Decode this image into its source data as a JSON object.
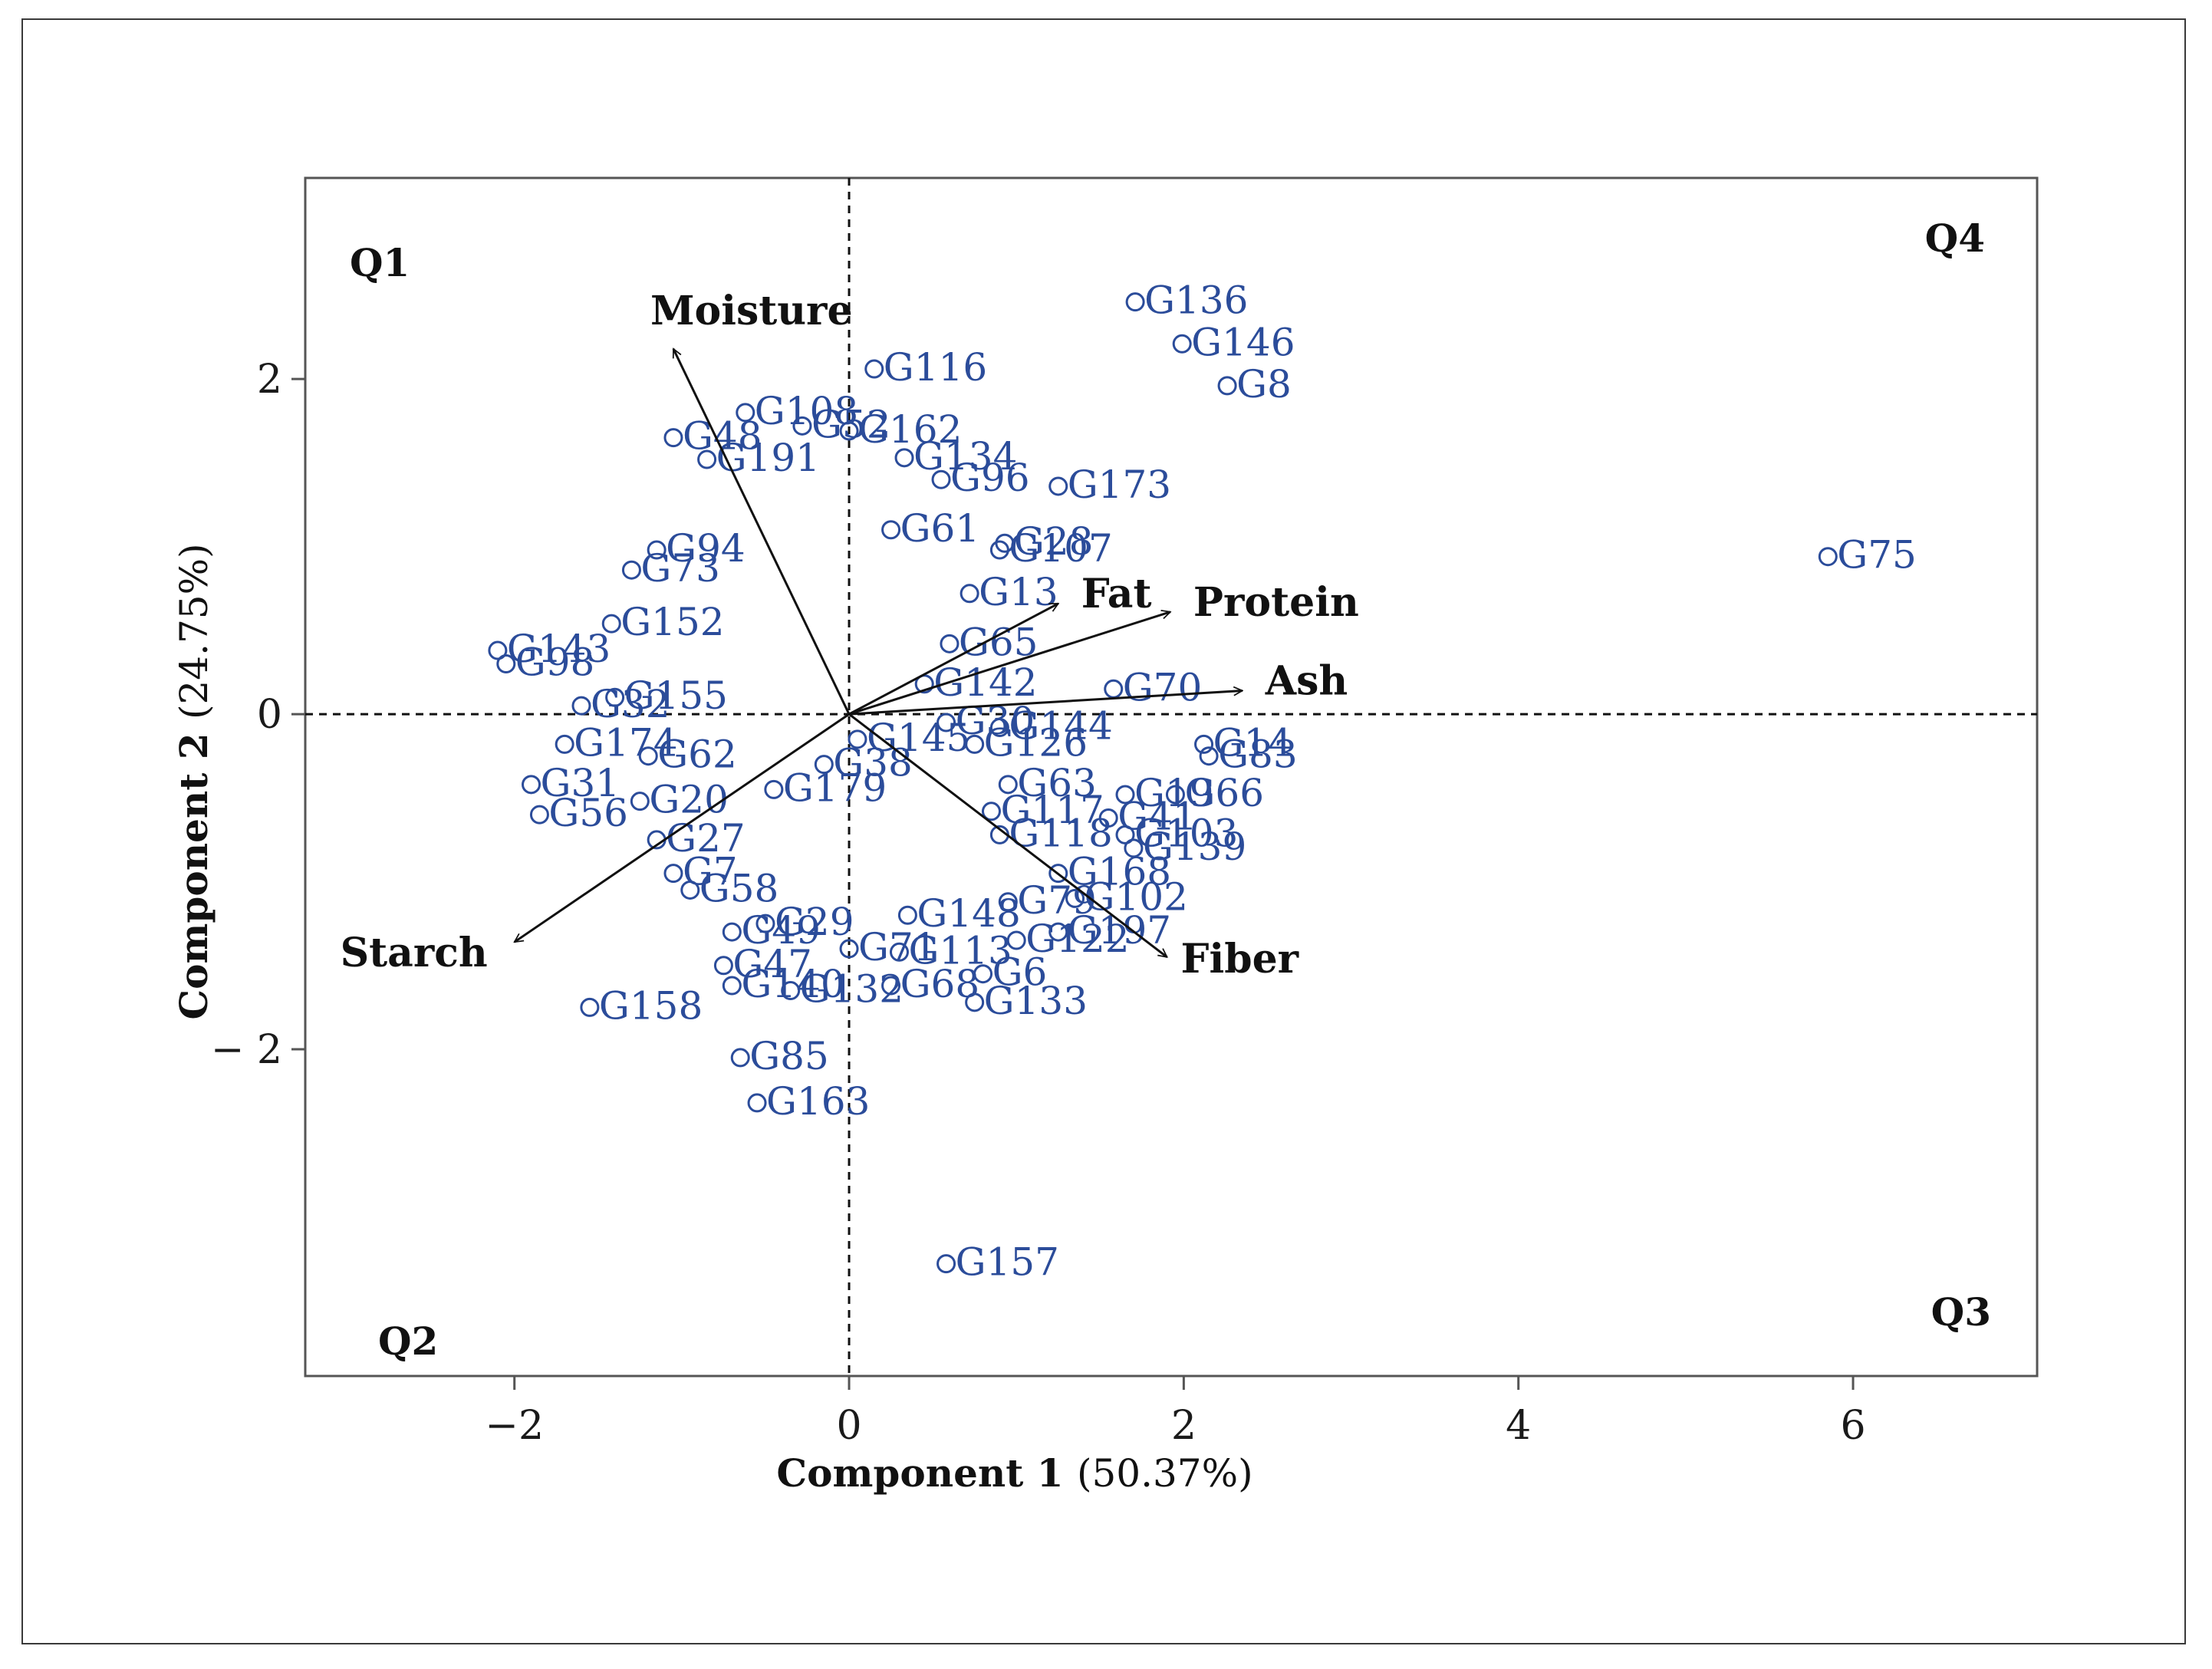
{
  "colors": {
    "points": "#2b4c9a",
    "axes": "#555555",
    "text": "#111111"
  },
  "chart_data": {
    "type": "scatter",
    "title": "",
    "xlabel_main": "Component 1",
    "xlabel_pct": "(50.37%)",
    "ylabel_main": "Component  2",
    "ylabel_pct": "(24.75%)",
    "xlim": [
      -3.25,
      7.1
    ],
    "ylim": [
      -3.95,
      3.2
    ],
    "x_ticks": [
      -2,
      0,
      2,
      4,
      6
    ],
    "x_tick_labels": [
      "−2",
      "0",
      "2",
      "4",
      "6"
    ],
    "y_ticks": [
      -2,
      0,
      2
    ],
    "y_tick_labels": [
      "− 2",
      "0",
      "2"
    ],
    "reference_lines": {
      "x": 0,
      "y": 0,
      "style": "dashed"
    },
    "quadrants": [
      {
        "label": "Q1",
        "position": "top-left"
      },
      {
        "label": "Q4",
        "position": "top-right"
      },
      {
        "label": "Q2",
        "position": "bottom-left"
      },
      {
        "label": "Q3",
        "position": "bottom-right"
      }
    ],
    "loadings": [
      {
        "name": "Moisture",
        "x": -1.05,
        "y": 2.18
      },
      {
        "name": "Fat",
        "x": 1.25,
        "y": 0.66
      },
      {
        "name": "Protein",
        "x": 1.92,
        "y": 0.61
      },
      {
        "name": "Ash",
        "x": 2.35,
        "y": 0.14
      },
      {
        "name": "Starch",
        "x": -2.0,
        "y": -1.36
      },
      {
        "name": "Fiber",
        "x": 1.9,
        "y": -1.45
      }
    ],
    "points": [
      {
        "label": "G136",
        "x": 1.71,
        "y": 2.46
      },
      {
        "label": "G146",
        "x": 1.99,
        "y": 2.21
      },
      {
        "label": "G8",
        "x": 2.26,
        "y": 1.96
      },
      {
        "label": "G116",
        "x": 0.15,
        "y": 2.06
      },
      {
        "label": "G52",
        "x": -0.28,
        "y": 1.72
      },
      {
        "label": "G162",
        "x": 0.0,
        "y": 1.69
      },
      {
        "label": "G108",
        "x": -0.62,
        "y": 1.8
      },
      {
        "label": "G48",
        "x": -1.05,
        "y": 1.65
      },
      {
        "label": "G191",
        "x": -0.85,
        "y": 1.52
      },
      {
        "label": "G134",
        "x": 0.33,
        "y": 1.53
      },
      {
        "label": "G173",
        "x": 1.25,
        "y": 1.36
      },
      {
        "label": "G96",
        "x": 0.55,
        "y": 1.4
      },
      {
        "label": "G61",
        "x": 0.25,
        "y": 1.1
      },
      {
        "label": "G28",
        "x": 0.93,
        "y": 1.02
      },
      {
        "label": "G107",
        "x": 0.9,
        "y": 0.98
      },
      {
        "label": "G75",
        "x": 5.85,
        "y": 0.94
      },
      {
        "label": "G94",
        "x": -1.15,
        "y": 0.98
      },
      {
        "label": "G73",
        "x": -1.3,
        "y": 0.86
      },
      {
        "label": "G152",
        "x": -1.42,
        "y": 0.54
      },
      {
        "label": "G143",
        "x": -2.1,
        "y": 0.38
      },
      {
        "label": "G13",
        "x": 0.72,
        "y": 0.72
      },
      {
        "label": "G65",
        "x": 0.6,
        "y": 0.42
      },
      {
        "label": "G142",
        "x": 0.45,
        "y": 0.18
      },
      {
        "label": "G70",
        "x": 1.58,
        "y": 0.15
      },
      {
        "label": "G98",
        "x": -2.05,
        "y": 0.3
      },
      {
        "label": "G32",
        "x": -1.6,
        "y": 0.05
      },
      {
        "label": "G155",
        "x": -1.4,
        "y": 0.1
      },
      {
        "label": "G144",
        "x": 0.9,
        "y": -0.08
      },
      {
        "label": "G30",
        "x": 0.58,
        "y": -0.05
      },
      {
        "label": "G145",
        "x": 0.05,
        "y": -0.15
      },
      {
        "label": "G126",
        "x": 0.75,
        "y": -0.18
      },
      {
        "label": "G14",
        "x": 2.12,
        "y": -0.18
      },
      {
        "label": "G83",
        "x": 2.15,
        "y": -0.25
      },
      {
        "label": "G174",
        "x": -1.7,
        "y": -0.18
      },
      {
        "label": "G62",
        "x": -1.2,
        "y": -0.25
      },
      {
        "label": "G38",
        "x": -0.15,
        "y": -0.3
      },
      {
        "label": "G63",
        "x": 0.95,
        "y": -0.42
      },
      {
        "label": "G19",
        "x": 1.65,
        "y": -0.48
      },
      {
        "label": "G66",
        "x": 1.95,
        "y": -0.48
      },
      {
        "label": "G31",
        "x": -1.9,
        "y": -0.42
      },
      {
        "label": "G20",
        "x": -1.25,
        "y": -0.52
      },
      {
        "label": "G179",
        "x": -0.45,
        "y": -0.45
      },
      {
        "label": "G56",
        "x": -1.85,
        "y": -0.6
      },
      {
        "label": "G117",
        "x": 0.85,
        "y": -0.58
      },
      {
        "label": "G41",
        "x": 1.55,
        "y": -0.62
      },
      {
        "label": "G103",
        "x": 1.65,
        "y": -0.72
      },
      {
        "label": "G118",
        "x": 0.9,
        "y": -0.72
      },
      {
        "label": "G139",
        "x": 1.7,
        "y": -0.8
      },
      {
        "label": "G27",
        "x": -1.15,
        "y": -0.75
      },
      {
        "label": "G7",
        "x": -1.05,
        "y": -0.95
      },
      {
        "label": "G168",
        "x": 1.25,
        "y": -0.95
      },
      {
        "label": "G102",
        "x": 1.35,
        "y": -1.1
      },
      {
        "label": "G58",
        "x": -0.95,
        "y": -1.05
      },
      {
        "label": "G79",
        "x": 0.95,
        "y": -1.12
      },
      {
        "label": "G148",
        "x": 0.35,
        "y": -1.2
      },
      {
        "label": "G197",
        "x": 1.25,
        "y": -1.3
      },
      {
        "label": "G122",
        "x": 1.0,
        "y": -1.35
      },
      {
        "label": "G113",
        "x": 0.3,
        "y": -1.42
      },
      {
        "label": "G29",
        "x": -0.5,
        "y": -1.25
      },
      {
        "label": "G49",
        "x": -0.7,
        "y": -1.3
      },
      {
        "label": "G71",
        "x": 0.0,
        "y": -1.4
      },
      {
        "label": "G47",
        "x": -0.75,
        "y": -1.5
      },
      {
        "label": "G140",
        "x": -0.7,
        "y": -1.62
      },
      {
        "label": "G132",
        "x": -0.35,
        "y": -1.65
      },
      {
        "label": "G68",
        "x": 0.25,
        "y": -1.62
      },
      {
        "label": "G6",
        "x": 0.8,
        "y": -1.55
      },
      {
        "label": "G133",
        "x": 0.75,
        "y": -1.72
      },
      {
        "label": "G158",
        "x": -1.55,
        "y": -1.75
      },
      {
        "label": "G85",
        "x": -0.65,
        "y": -2.05
      },
      {
        "label": "G163",
        "x": -0.55,
        "y": -2.32
      },
      {
        "label": "G157",
        "x": 0.58,
        "y": -3.28
      }
    ]
  }
}
